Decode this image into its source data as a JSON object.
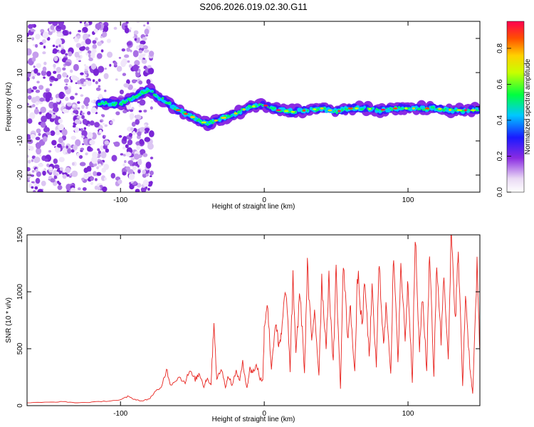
{
  "title": "S206.2026.019.02.30.G11",
  "chart_data": [
    {
      "type": "heatmap",
      "title": "S206.2026.019.02.30.G11",
      "xlabel": "Height of straight line (km)",
      "ylabel": "Frequency (Hz)",
      "xlim": [
        -165,
        150
      ],
      "ylim": [
        -25,
        25
      ],
      "xticks": [
        -100,
        0,
        100
      ],
      "yticks": [
        -20,
        -10,
        0,
        10,
        20
      ],
      "colorbar": {
        "label": "Normalized spectral amplitude",
        "range": [
          0,
          0.95
        ],
        "ticks": [
          0.0,
          0.2,
          0.4,
          0.6,
          0.8
        ]
      },
      "ridge": {
        "x": [
          -115,
          -100,
          -90,
          -85,
          -80,
          -75,
          -70,
          -60,
          -50,
          -40,
          -30,
          -20,
          -10,
          0,
          10,
          20,
          30,
          40,
          50,
          60,
          70,
          80,
          90,
          100,
          110,
          120,
          130,
          140,
          150
        ],
        "frequency": [
          1,
          1,
          3,
          4,
          5,
          3,
          2,
          -1,
          -3,
          -5,
          -3.5,
          -2,
          0,
          0.5,
          -1,
          -1.5,
          -1,
          -0.5,
          -1.5,
          -0.5,
          -0.5,
          -1,
          -0.5,
          -0.5,
          -0.5,
          -0.5,
          -1,
          -1,
          -1
        ]
      },
      "noise_region_x": [
        -165,
        -78
      ]
    },
    {
      "type": "line",
      "xlabel": "Height of straight line (km)",
      "ylabel": "SNR (10 * v/v)",
      "xlim": [
        -165,
        150
      ],
      "ylim": [
        0,
        1500
      ],
      "xticks": [
        -100,
        0,
        100
      ],
      "yticks": [
        0,
        500,
        1000,
        1500
      ],
      "series": [
        {
          "color": "#e8231e",
          "x": [
            -165,
            -150,
            -140,
            -130,
            -120,
            -110,
            -100,
            -95,
            -90,
            -85,
            -80,
            -76,
            -72,
            -68,
            -65,
            -60,
            -55,
            -52,
            -48,
            -45,
            -42,
            -40,
            -37,
            -35,
            -33,
            -30,
            -27,
            -25,
            -22,
            -20,
            -17,
            -15,
            -12,
            -10,
            -8,
            -5,
            -3,
            -1,
            0,
            2,
            5,
            8,
            10,
            12,
            15,
            18,
            20,
            22,
            25,
            28,
            30,
            33,
            35,
            38,
            40,
            43,
            45,
            48,
            50,
            53,
            55,
            58,
            60,
            63,
            65,
            68,
            70,
            73,
            75,
            78,
            80,
            83,
            85,
            88,
            90,
            93,
            95,
            98,
            100,
            103,
            105,
            108,
            110,
            113,
            115,
            118,
            120,
            123,
            125,
            128,
            130,
            133,
            135,
            138,
            140,
            143,
            145,
            148,
            150
          ],
          "y": [
            25,
            30,
            35,
            25,
            30,
            40,
            50,
            80,
            55,
            40,
            60,
            120,
            150,
            320,
            180,
            250,
            210,
            300,
            230,
            280,
            170,
            240,
            190,
            750,
            220,
            330,
            170,
            260,
            180,
            300,
            230,
            370,
            160,
            320,
            300,
            350,
            240,
            220,
            680,
            920,
            330,
            760,
            500,
            620,
            1060,
            320,
            1130,
            480,
            1000,
            290,
            1200,
            550,
            860,
            260,
            1100,
            520,
            1090,
            380,
            1200,
            140,
            1260,
            600,
            850,
            300,
            1170,
            700,
            1080,
            440,
            990,
            350,
            1280,
            520,
            900,
            280,
            1310,
            380,
            1240,
            600,
            1100,
            220,
            1480,
            460,
            990,
            300,
            1400,
            240,
            1290,
            560,
            1220,
            380,
            1470,
            780,
            1350,
            170,
            980,
            350,
            100,
            1200,
            470
          ]
        }
      ]
    }
  ]
}
